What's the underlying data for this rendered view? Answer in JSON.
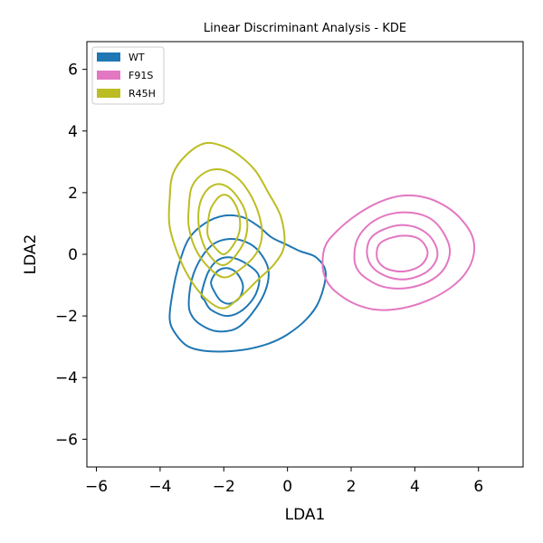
{
  "chart_data": {
    "type": "kde",
    "title": "Linear Discriminant Analysis - KDE",
    "xlabel": "LDA1",
    "ylabel": "LDA2",
    "xlim": [
      -6.3,
      7.4
    ],
    "ylim": [
      -6.9,
      6.9
    ],
    "xticks": [
      -6,
      -4,
      -2,
      0,
      2,
      4,
      6
    ],
    "yticks": [
      -6,
      -4,
      -2,
      0,
      2,
      4,
      6
    ],
    "legend_position": "upper-left",
    "series": [
      {
        "name": "WT",
        "color": "#1f77b4",
        "levels": [
          [
            [
              -3.7,
              -2.1
            ],
            [
              -3.6,
              -1.2
            ],
            [
              -3.4,
              -0.3
            ],
            [
              -3.1,
              0.5
            ],
            [
              -2.6,
              1.0
            ],
            [
              -2.0,
              1.25
            ],
            [
              -1.4,
              1.2
            ],
            [
              -0.9,
              0.9
            ],
            [
              -0.5,
              0.55
            ],
            [
              0.0,
              0.3
            ],
            [
              0.4,
              0.1
            ],
            [
              0.9,
              -0.1
            ],
            [
              1.2,
              -0.6
            ],
            [
              1.0,
              -1.5
            ],
            [
              0.6,
              -2.1
            ],
            [
              0.0,
              -2.6
            ],
            [
              -0.6,
              -2.9
            ],
            [
              -1.4,
              -3.1
            ],
            [
              -2.4,
              -3.15
            ],
            [
              -3.1,
              -3.0
            ],
            [
              -3.5,
              -2.6
            ]
          ],
          [
            [
              -3.1,
              -1.6
            ],
            [
              -3.0,
              -0.8
            ],
            [
              -2.7,
              -0.1
            ],
            [
              -2.3,
              0.35
            ],
            [
              -1.8,
              0.5
            ],
            [
              -1.3,
              0.4
            ],
            [
              -0.9,
              0.1
            ],
            [
              -0.6,
              -0.5
            ],
            [
              -0.7,
              -1.2
            ],
            [
              -1.1,
              -1.9
            ],
            [
              -1.6,
              -2.4
            ],
            [
              -2.2,
              -2.5
            ],
            [
              -2.7,
              -2.3
            ],
            [
              -3.0,
              -2.0
            ]
          ],
          [
            [
              -2.7,
              -1.3
            ],
            [
              -2.5,
              -0.6
            ],
            [
              -2.2,
              -0.2
            ],
            [
              -1.8,
              -0.1
            ],
            [
              -1.3,
              -0.3
            ],
            [
              -0.9,
              -0.7
            ],
            [
              -1.0,
              -1.3
            ],
            [
              -1.4,
              -1.8
            ],
            [
              -1.9,
              -2.0
            ],
            [
              -2.4,
              -1.8
            ],
            [
              -2.6,
              -1.5
            ]
          ],
          [
            [
              -2.4,
              -0.9
            ],
            [
              -2.2,
              -0.55
            ],
            [
              -1.9,
              -0.45
            ],
            [
              -1.6,
              -0.6
            ],
            [
              -1.4,
              -1.0
            ],
            [
              -1.5,
              -1.4
            ],
            [
              -1.8,
              -1.6
            ],
            [
              -2.1,
              -1.5
            ],
            [
              -2.3,
              -1.2
            ]
          ]
        ]
      },
      {
        "name": "F91S",
        "color": "#e377c2",
        "levels": [
          [
            [
              1.1,
              -0.3
            ],
            [
              1.2,
              0.3
            ],
            [
              1.6,
              0.8
            ],
            [
              2.2,
              1.3
            ],
            [
              2.9,
              1.7
            ],
            [
              3.6,
              1.9
            ],
            [
              4.3,
              1.85
            ],
            [
              4.9,
              1.6
            ],
            [
              5.4,
              1.2
            ],
            [
              5.8,
              0.6
            ],
            [
              5.85,
              0.0
            ],
            [
              5.6,
              -0.6
            ],
            [
              5.1,
              -1.1
            ],
            [
              4.4,
              -1.5
            ],
            [
              3.6,
              -1.75
            ],
            [
              2.8,
              -1.8
            ],
            [
              2.1,
              -1.6
            ],
            [
              1.5,
              -1.2
            ],
            [
              1.2,
              -0.8
            ]
          ],
          [
            [
              2.1,
              -0.1
            ],
            [
              2.2,
              0.5
            ],
            [
              2.6,
              1.0
            ],
            [
              3.2,
              1.3
            ],
            [
              3.9,
              1.35
            ],
            [
              4.5,
              1.15
            ],
            [
              4.9,
              0.7
            ],
            [
              5.1,
              0.1
            ],
            [
              4.9,
              -0.5
            ],
            [
              4.4,
              -0.9
            ],
            [
              3.7,
              -1.1
            ],
            [
              3.0,
              -1.05
            ],
            [
              2.5,
              -0.8
            ],
            [
              2.2,
              -0.5
            ]
          ],
          [
            [
              2.5,
              0.0
            ],
            [
              2.6,
              0.5
            ],
            [
              3.0,
              0.8
            ],
            [
              3.6,
              0.95
            ],
            [
              4.2,
              0.8
            ],
            [
              4.6,
              0.4
            ],
            [
              4.7,
              -0.1
            ],
            [
              4.4,
              -0.55
            ],
            [
              3.8,
              -0.8
            ],
            [
              3.2,
              -0.75
            ],
            [
              2.7,
              -0.45
            ]
          ],
          [
            [
              2.8,
              0.0
            ],
            [
              2.9,
              0.35
            ],
            [
              3.3,
              0.55
            ],
            [
              3.8,
              0.6
            ],
            [
              4.2,
              0.45
            ],
            [
              4.4,
              0.05
            ],
            [
              4.2,
              -0.35
            ],
            [
              3.7,
              -0.55
            ],
            [
              3.2,
              -0.5
            ],
            [
              2.9,
              -0.3
            ]
          ]
        ]
      },
      {
        "name": "R45H",
        "color": "#bcbd22",
        "levels": [
          [
            [
              -3.7,
              1.8
            ],
            [
              -3.6,
              2.6
            ],
            [
              -3.2,
              3.2
            ],
            [
              -2.6,
              3.6
            ],
            [
              -2.0,
              3.5
            ],
            [
              -1.5,
              3.2
            ],
            [
              -1.0,
              2.7
            ],
            [
              -0.6,
              2.0
            ],
            [
              -0.2,
              1.2
            ],
            [
              -0.1,
              0.3
            ],
            [
              -0.4,
              -0.3
            ],
            [
              -0.9,
              -0.8
            ],
            [
              -1.5,
              -1.4
            ],
            [
              -2.0,
              -1.75
            ],
            [
              -2.5,
              -1.5
            ],
            [
              -3.0,
              -0.9
            ],
            [
              -3.4,
              -0.1
            ],
            [
              -3.7,
              0.9
            ]
          ],
          [
            [
              -3.1,
              1.5
            ],
            [
              -3.0,
              2.2
            ],
            [
              -2.6,
              2.65
            ],
            [
              -2.1,
              2.75
            ],
            [
              -1.6,
              2.5
            ],
            [
              -1.2,
              2.0
            ],
            [
              -0.9,
              1.3
            ],
            [
              -0.8,
              0.6
            ],
            [
              -1.0,
              0.0
            ],
            [
              -1.5,
              -0.5
            ],
            [
              -2.0,
              -0.75
            ],
            [
              -2.5,
              -0.4
            ],
            [
              -2.9,
              0.2
            ],
            [
              -3.1,
              0.9
            ]
          ],
          [
            [
              -2.8,
              1.2
            ],
            [
              -2.7,
              1.8
            ],
            [
              -2.4,
              2.2
            ],
            [
              -2.0,
              2.25
            ],
            [
              -1.6,
              1.9
            ],
            [
              -1.3,
              1.3
            ],
            [
              -1.3,
              0.6
            ],
            [
              -1.6,
              0.0
            ],
            [
              -2.0,
              -0.35
            ],
            [
              -2.4,
              -0.1
            ],
            [
              -2.7,
              0.5
            ]
          ],
          [
            [
              -2.5,
              1.0
            ],
            [
              -2.4,
              1.5
            ],
            [
              -2.1,
              1.9
            ],
            [
              -1.8,
              1.85
            ],
            [
              -1.55,
              1.4
            ],
            [
              -1.5,
              0.8
            ],
            [
              -1.7,
              0.3
            ],
            [
              -2.0,
              0.0
            ],
            [
              -2.3,
              0.25
            ],
            [
              -2.5,
              0.6
            ]
          ]
        ]
      }
    ]
  }
}
